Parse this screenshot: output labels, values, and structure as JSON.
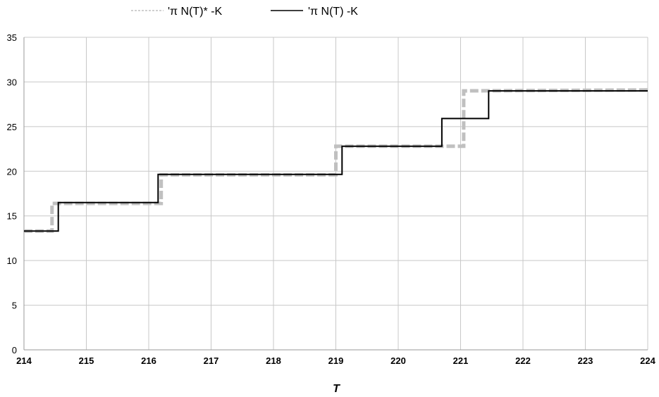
{
  "chart_data": {
    "type": "line",
    "title": "",
    "xlabel": "T",
    "ylabel": "",
    "xlim": [
      214,
      224
    ],
    "ylim": [
      0,
      35
    ],
    "xticks": [
      214,
      215,
      216,
      217,
      218,
      219,
      220,
      221,
      222,
      223,
      224
    ],
    "yticks": [
      0,
      5,
      10,
      15,
      20,
      25,
      30,
      35
    ],
    "grid": true,
    "legend_position": "top",
    "series": [
      {
        "name": "'π N(T)*  -K",
        "style": "dashed",
        "color": "#c0c0c0",
        "x": [
          214,
          214.45,
          214.45,
          216.2,
          216.2,
          219.0,
          219.0,
          221.05,
          221.05,
          224
        ],
        "y": [
          13.3,
          13.3,
          16.4,
          16.4,
          19.6,
          19.6,
          22.8,
          22.8,
          29.0,
          29.1
        ]
      },
      {
        "name": "'π N(T) -K",
        "style": "solid",
        "color": "#000000",
        "x": [
          214,
          214.55,
          214.55,
          216.15,
          216.15,
          219.1,
          219.1,
          220.7,
          220.7,
          221.45,
          221.45,
          224
        ],
        "y": [
          13.3,
          13.3,
          16.5,
          16.5,
          19.65,
          19.65,
          22.8,
          22.8,
          25.9,
          25.9,
          29.0,
          29.0
        ]
      }
    ]
  }
}
